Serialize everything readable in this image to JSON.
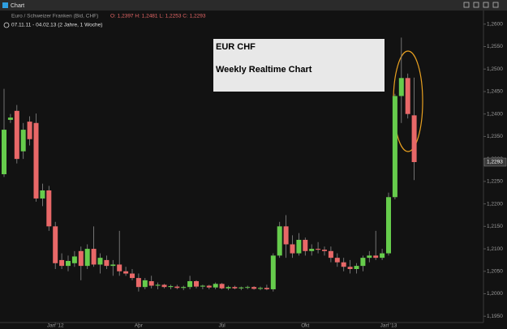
{
  "window_title": "Chart",
  "chart_data": {
    "type": "candlestick",
    "title": "Euro / Schweizer Franken (Bid, CHF)",
    "ohlc_text": "O: 1,2397  H: 1,2481  L: 1,2253  C: 1,2293",
    "subtitle": "07.11.11 - 04.02.13 (2 Jahre, 1 Woche)",
    "annotations": [
      "EUR CHF",
      "Weekly Realtime Chart"
    ],
    "up_color": "#66cc4c",
    "down_color": "#e86868",
    "categories": [
      null,
      null,
      null,
      null,
      null,
      null,
      null,
      null,
      "Jan '12",
      null,
      null,
      null,
      null,
      null,
      null,
      null,
      null,
      null,
      null,
      null,
      null,
      "Apr",
      null,
      null,
      null,
      null,
      null,
      null,
      null,
      null,
      null,
      null,
      null,
      null,
      "Jul",
      null,
      null,
      null,
      null,
      null,
      null,
      null,
      null,
      null,
      null,
      null,
      null,
      "Okt",
      null,
      null,
      null,
      null,
      null,
      null,
      null,
      null,
      null,
      null,
      null,
      null,
      "Jan '13",
      null,
      null,
      null,
      null
    ],
    "open": [
      1.2266,
      1.2387,
      1.2407,
      1.2317,
      1.2383,
      1.238,
      1.2212,
      1.223,
      1.215,
      1.2075,
      1.2062,
      1.2068,
      1.2095,
      1.2062,
      1.21,
      1.2065,
      1.2075,
      1.2062,
      1.2065,
      1.205,
      1.2045,
      1.2035,
      1.2015,
      1.2028,
      1.2018,
      1.202,
      1.2015,
      1.2016,
      1.2013,
      1.2015,
      1.2028,
      1.2016,
      1.2018,
      1.2014,
      1.2022,
      1.2012,
      1.2015,
      1.2012,
      1.2014,
      1.2015,
      1.2011,
      1.2013,
      1.201,
      1.2085,
      1.215,
      1.211,
      1.209,
      1.212,
      1.2095,
      1.21,
      1.2098,
      1.2095,
      1.208,
      1.207,
      1.206,
      1.2055,
      1.2062,
      1.208,
      1.2085,
      1.208,
      1.209,
      1.2215,
      1.244,
      1.248,
      1.2397
    ],
    "high": [
      1.2456,
      1.24,
      1.242,
      1.238,
      1.2395,
      1.2401,
      1.2245,
      1.224,
      1.216,
      1.209,
      1.2085,
      1.2095,
      1.2105,
      1.211,
      1.215,
      1.209,
      1.2085,
      1.2075,
      1.214,
      1.206,
      1.2055,
      1.2045,
      1.2035,
      1.204,
      1.2025,
      1.2022,
      1.202,
      1.202,
      1.2018,
      1.204,
      1.203,
      1.202,
      1.202,
      1.2025,
      1.2024,
      1.2018,
      1.2018,
      1.2016,
      1.2018,
      1.2017,
      1.2016,
      1.202,
      1.209,
      1.216,
      1.2175,
      1.213,
      1.2135,
      1.2125,
      1.211,
      1.2115,
      1.2105,
      1.2105,
      1.209,
      1.208,
      1.2075,
      1.2068,
      1.2085,
      1.2095,
      1.214,
      1.21,
      1.2225,
      1.2445,
      1.257,
      1.249,
      1.2481
    ],
    "low": [
      1.226,
      1.238,
      1.229,
      1.23,
      1.233,
      1.2205,
      1.2195,
      1.214,
      1.2055,
      1.2055,
      1.205,
      1.206,
      1.203,
      1.2055,
      1.206,
      1.2045,
      1.2055,
      1.204,
      1.204,
      1.204,
      1.203,
      1.2005,
      1.201,
      1.2012,
      1.201,
      1.2012,
      1.201,
      1.201,
      1.2008,
      1.201,
      1.2012,
      1.201,
      1.201,
      1.201,
      1.201,
      1.2008,
      1.201,
      1.2008,
      1.201,
      1.2009,
      1.2008,
      1.2008,
      1.2005,
      1.208,
      1.208,
      1.208,
      1.2085,
      1.2085,
      1.2085,
      1.209,
      1.2085,
      1.207,
      1.206,
      1.205,
      1.2045,
      1.2045,
      1.205,
      1.207,
      1.2075,
      1.2075,
      1.2085,
      1.221,
      1.238,
      1.239,
      1.2253
    ],
    "close": [
      1.2365,
      1.2392,
      1.23,
      1.2365,
      1.2344,
      1.2212,
      1.223,
      1.215,
      1.2068,
      1.2062,
      1.2073,
      1.2083,
      1.2062,
      1.21,
      1.2065,
      1.208,
      1.2062,
      1.2065,
      1.205,
      1.2045,
      1.2035,
      1.2015,
      1.203,
      1.2018,
      1.202,
      1.2015,
      1.2017,
      1.2013,
      1.2015,
      1.2028,
      1.2016,
      1.2018,
      1.2014,
      1.2022,
      1.2012,
      1.2015,
      1.2012,
      1.2014,
      1.2015,
      1.2011,
      1.2013,
      1.201,
      1.2085,
      1.215,
      1.211,
      1.209,
      1.212,
      1.2095,
      1.21,
      1.2098,
      1.2095,
      1.208,
      1.207,
      1.206,
      1.2055,
      1.2062,
      1.208,
      1.2085,
      1.208,
      1.209,
      1.2215,
      1.244,
      1.248,
      1.24,
      1.2293
    ],
    "last_price": {
      "value": 1.2293,
      "label": "1,2293"
    },
    "ylim": [
      1.1936,
      1.2614
    ],
    "yticks": [
      {
        "value": 1.195,
        "label": "1,1950"
      },
      {
        "value": 1.2,
        "label": "1,2000"
      },
      {
        "value": 1.205,
        "label": "1,2050"
      },
      {
        "value": 1.21,
        "label": "1,2100"
      },
      {
        "value": 1.215,
        "label": "1,2150"
      },
      {
        "value": 1.22,
        "label": "1,2200"
      },
      {
        "value": 1.225,
        "label": "1,2250"
      },
      {
        "value": 1.23,
        "label": "1,2300"
      },
      {
        "value": 1.235,
        "label": "1,2350"
      },
      {
        "value": 1.24,
        "label": "1,2400"
      },
      {
        "value": 1.245,
        "label": "1,2450"
      },
      {
        "value": 1.25,
        "label": "1,2500"
      },
      {
        "value": 1.255,
        "label": "1,2550"
      },
      {
        "value": 1.26,
        "label": "1,2600"
      }
    ]
  }
}
